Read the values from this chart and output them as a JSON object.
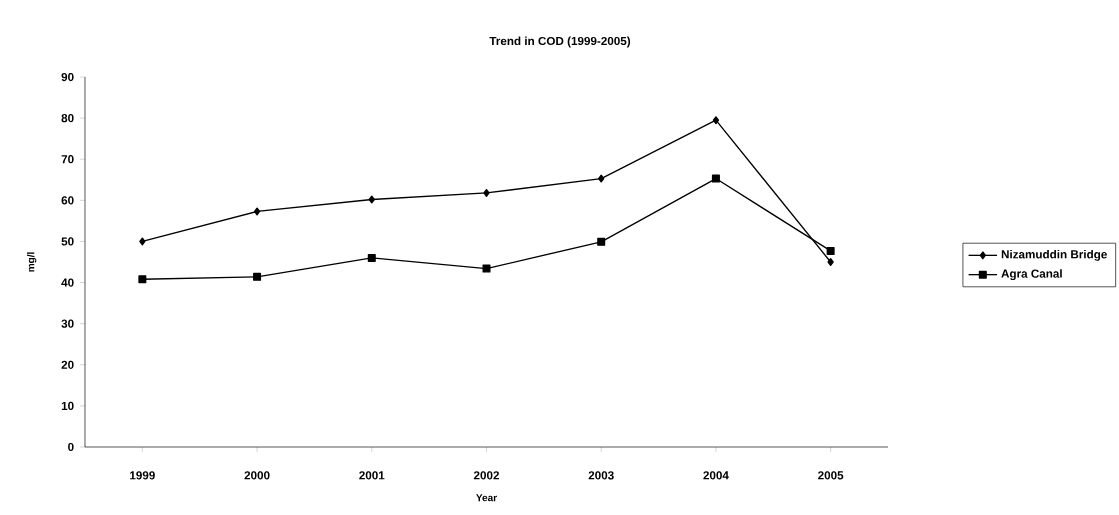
{
  "chart_data": {
    "type": "line",
    "title": "Trend in COD (1999-2005)",
    "xlabel": "Year",
    "ylabel": "mg/l",
    "categories": [
      "1999",
      "2000",
      "2001",
      "2002",
      "2003",
      "2004",
      "2005"
    ],
    "series": [
      {
        "name": "Nizamuddin Bridge",
        "color": "#000000",
        "marker": "diamond",
        "values": [
          50.0,
          57.3,
          60.2,
          61.8,
          65.3,
          79.5,
          45.0
        ]
      },
      {
        "name": "Agra Canal",
        "color": "#000000",
        "marker": "square",
        "values": [
          40.8,
          41.4,
          46.0,
          43.4,
          49.9,
          65.3,
          47.7
        ]
      }
    ],
    "ylim": [
      0,
      90
    ],
    "yticks": [
      0,
      10,
      20,
      30,
      40,
      50,
      60,
      70,
      80,
      90
    ],
    "grid": false,
    "legend": "right",
    "line_style": "solid"
  }
}
